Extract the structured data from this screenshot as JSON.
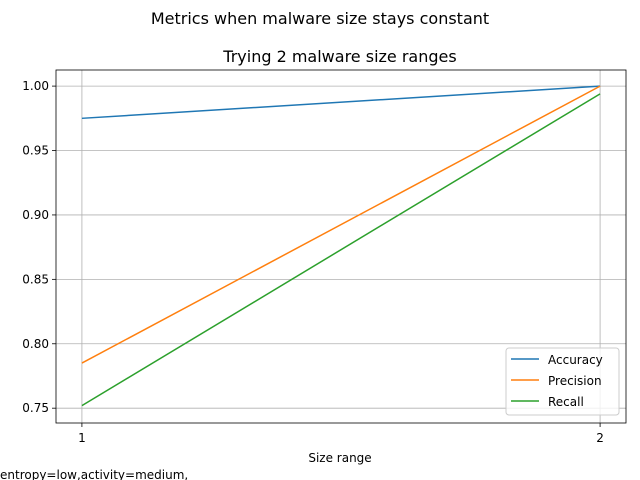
{
  "chart_data": {
    "type": "line",
    "suptitle": "Metrics when malware size stays constant",
    "title": "Trying 2 malware size ranges",
    "xlabel": "Size range",
    "ylabel": "",
    "footnote": "entropy=low,activity=medium,",
    "x": [
      1,
      2
    ],
    "xticks": [
      "1",
      "2"
    ],
    "ylim": [
      0.7385,
      1.0125
    ],
    "yticks": [
      0.75,
      0.8,
      0.85,
      0.9,
      0.95,
      1.0
    ],
    "ytick_labels": [
      "0.75",
      "0.80",
      "0.85",
      "0.90",
      "0.95",
      "1.00"
    ],
    "grid": true,
    "legend_position": "lower-right",
    "series": [
      {
        "name": "Accuracy",
        "color": "#1f77b4",
        "values": [
          0.975,
          1.0
        ]
      },
      {
        "name": "Precision",
        "color": "#ff7f0e",
        "values": [
          0.785,
          1.0
        ]
      },
      {
        "name": "Recall",
        "color": "#2ca02c",
        "values": [
          0.752,
          0.994
        ]
      }
    ]
  }
}
